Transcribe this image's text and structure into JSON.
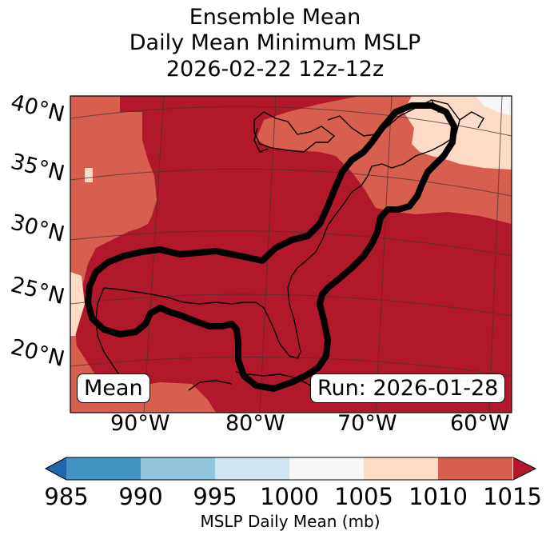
{
  "title": {
    "line1": "Ensemble Mean",
    "line2": "Daily Mean Minimum MSLP",
    "line3": "2026-02-22 12z-12z"
  },
  "map": {
    "lat_labels": [
      "40°N",
      "35°N",
      "30°N",
      "25°N",
      "20°N"
    ],
    "lon_labels": [
      "90°W",
      "80°W",
      "70°W",
      "60°W"
    ],
    "panel_label": "Mean",
    "run_label": "Run: 2026-01-28",
    "fill_colors": {
      "very_low": "#b2182b",
      "low": "#d6604d",
      "mid": "#fddbc7",
      "high": "#f7f7f7"
    },
    "contour_color": "#000000"
  },
  "colorbar": {
    "ticks": [
      "985",
      "990",
      "995",
      "1000",
      "1005",
      "1010",
      "1015"
    ],
    "label": "MSLP Daily Mean (mb)",
    "colors": [
      "#2166ac",
      "#4393c3",
      "#92c5de",
      "#d1e5f0",
      "#f7f7f7",
      "#fddbc7",
      "#d6604d",
      "#b2182b"
    ]
  }
}
